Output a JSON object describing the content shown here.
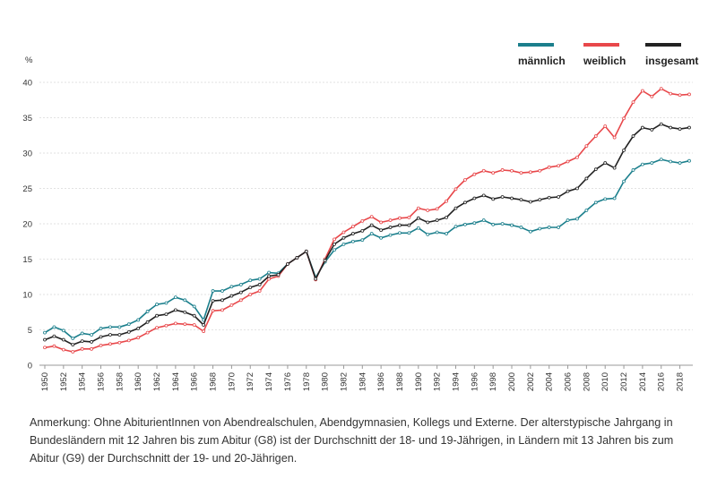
{
  "chart_data": {
    "type": "line",
    "ylabel": "%",
    "ylim": [
      0,
      40
    ],
    "yticks": [
      0,
      5,
      10,
      15,
      20,
      25,
      30,
      35,
      40
    ],
    "xticks": [
      1950,
      1952,
      1954,
      1956,
      1958,
      1960,
      1962,
      1964,
      1966,
      1968,
      1970,
      1972,
      1974,
      1976,
      1978,
      1980,
      1982,
      1984,
      1986,
      1988,
      1990,
      1992,
      1994,
      1996,
      1998,
      2000,
      2002,
      2004,
      2006,
      2008,
      2010,
      2012,
      2014,
      2016,
      2018
    ],
    "x": [
      1950,
      1951,
      1952,
      1953,
      1954,
      1955,
      1956,
      1957,
      1958,
      1959,
      1960,
      1961,
      1962,
      1963,
      1964,
      1965,
      1966,
      1967,
      1968,
      1969,
      1970,
      1971,
      1972,
      1973,
      1974,
      1975,
      1976,
      1977,
      1978,
      1979,
      1980,
      1981,
      1982,
      1983,
      1984,
      1985,
      1986,
      1987,
      1988,
      1989,
      1990,
      1991,
      1992,
      1993,
      1994,
      1995,
      1996,
      1997,
      1998,
      1999,
      2000,
      2001,
      2002,
      2003,
      2004,
      2005,
      2006,
      2007,
      2008,
      2009,
      2010,
      2011,
      2012,
      2013,
      2014,
      2015,
      2016,
      2017,
      2018,
      2019
    ],
    "grid": true,
    "legend_position": "top-right",
    "series": [
      {
        "name": "männlich",
        "color": "#1b7f8c",
        "values": [
          4.6,
          5.4,
          4.9,
          3.8,
          4.5,
          4.3,
          5.2,
          5.4,
          5.4,
          5.8,
          6.4,
          7.6,
          8.6,
          8.8,
          9.6,
          9.2,
          8.3,
          6.4,
          10.5,
          10.5,
          11.1,
          11.4,
          12.0,
          12.2,
          13.1,
          13.0,
          14.3,
          15.2,
          16.1,
          12.4,
          14.6,
          16.3,
          17.1,
          17.5,
          17.7,
          18.6,
          18.0,
          18.4,
          18.7,
          18.7,
          19.4,
          18.5,
          18.8,
          18.6,
          19.6,
          19.9,
          20.1,
          20.5,
          19.9,
          20.0,
          19.8,
          19.5,
          18.9,
          19.3,
          19.5,
          19.5,
          20.5,
          20.7,
          21.9,
          23.0,
          23.5,
          23.6,
          26.0,
          27.6,
          28.4,
          28.6,
          29.1,
          28.8,
          28.6,
          28.9
        ]
      },
      {
        "name": "weiblich",
        "color": "#e8474a",
        "values": [
          2.5,
          2.7,
          2.2,
          1.9,
          2.3,
          2.3,
          2.8,
          3.0,
          3.2,
          3.5,
          3.9,
          4.6,
          5.3,
          5.6,
          5.9,
          5.8,
          5.7,
          4.8,
          7.7,
          7.8,
          8.5,
          9.2,
          10.0,
          10.5,
          12.2,
          12.6,
          14.3,
          15.2,
          16.1,
          12.1,
          15.0,
          17.8,
          18.8,
          19.6,
          20.4,
          21.0,
          20.2,
          20.5,
          20.8,
          20.9,
          22.2,
          21.9,
          22.1,
          23.2,
          24.9,
          26.2,
          27.0,
          27.5,
          27.2,
          27.6,
          27.5,
          27.2,
          27.3,
          27.5,
          28.0,
          28.2,
          28.8,
          29.4,
          31.0,
          32.4,
          33.8,
          32.2,
          34.9,
          37.2,
          38.8,
          38.0,
          39.1,
          38.4,
          38.2,
          38.3
        ]
      },
      {
        "name": "insgesamt",
        "color": "#222222",
        "values": [
          3.6,
          4.1,
          3.6,
          2.9,
          3.4,
          3.3,
          4.0,
          4.3,
          4.3,
          4.7,
          5.2,
          6.1,
          7.0,
          7.2,
          7.8,
          7.5,
          7.0,
          5.7,
          9.1,
          9.2,
          9.8,
          10.3,
          11.0,
          11.4,
          12.6,
          12.8,
          14.3,
          15.2,
          16.1,
          12.2,
          14.8,
          17.1,
          18.0,
          18.6,
          19.0,
          19.8,
          19.1,
          19.5,
          19.8,
          19.8,
          20.8,
          20.2,
          20.5,
          20.9,
          22.2,
          23.0,
          23.6,
          24.0,
          23.5,
          23.8,
          23.6,
          23.4,
          23.1,
          23.4,
          23.7,
          23.8,
          24.6,
          25.0,
          26.4,
          27.7,
          28.6,
          27.9,
          30.4,
          32.4,
          33.6,
          33.3,
          34.1,
          33.6,
          33.4,
          33.6
        ]
      }
    ]
  },
  "note": "Anmerkung: Ohne AbiturientInnen von Abendrealschulen, Abendgymnasien, Kollegs und Externe. Der alterstypische Jahrgang in Bundesländern mit 12 Jahren bis zum Abitur (G8) ist der Durchschnitt der 18- und 19-Jährigen, in Ländern mit 13 Jahren bis zum Abitur (G9) der Durchschnitt der 19- und 20-Jährigen."
}
